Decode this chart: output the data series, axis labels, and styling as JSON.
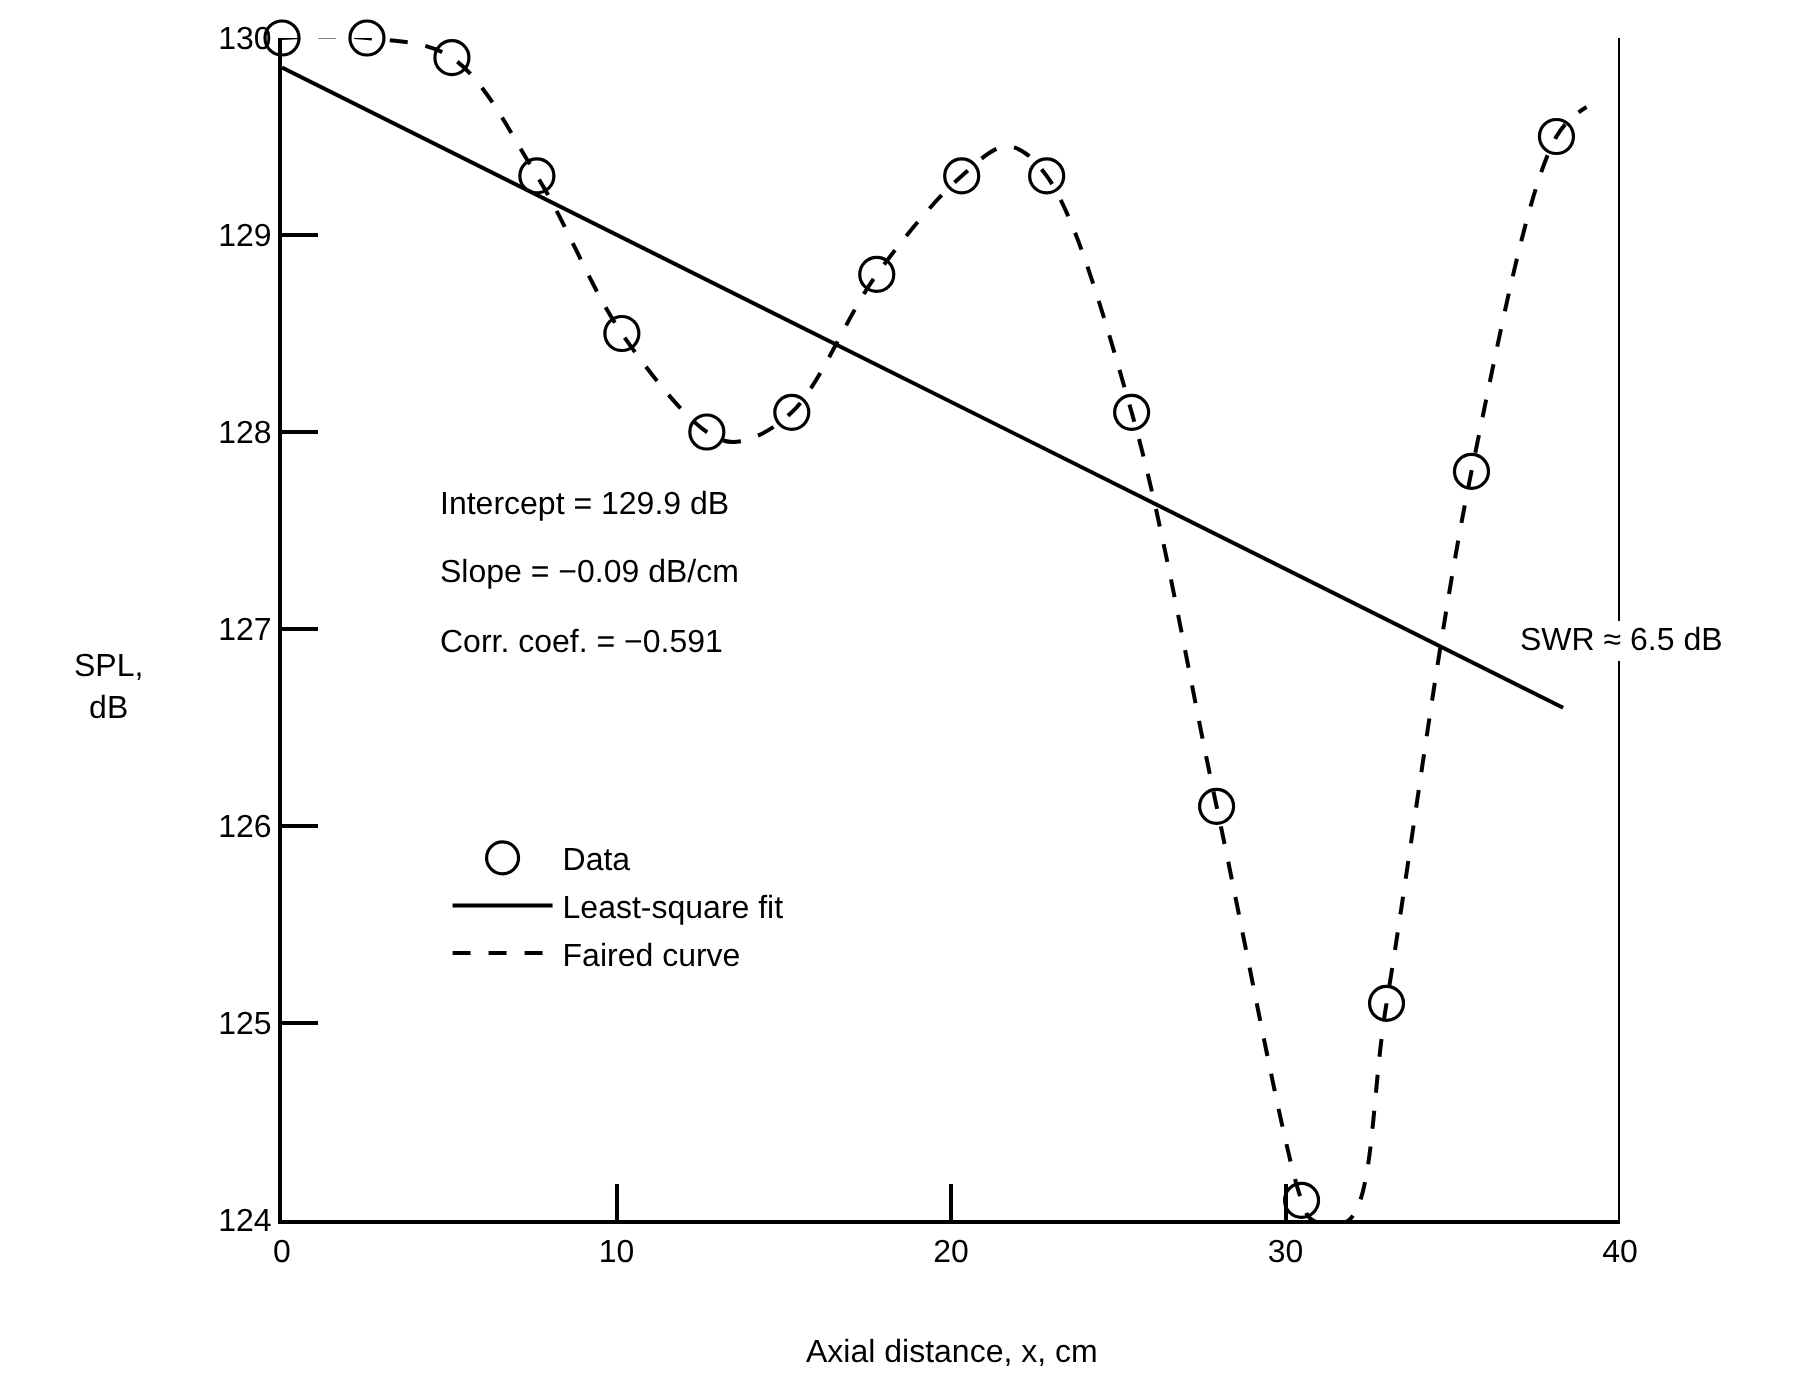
{
  "chart_data": {
    "type": "scatter",
    "xlabel": "Axial distance, x, cm",
    "ylabel": "SPL,\ndB",
    "xlim": [
      0,
      40
    ],
    "xticks": [
      0,
      10,
      20,
      30,
      40
    ],
    "ylim": [
      124,
      130
    ],
    "yticks": [
      124,
      125,
      126,
      127,
      128,
      129,
      130
    ],
    "legend": "left",
    "annotations": [
      "Intercept = 129.9 dB",
      "Slope = −0.09 dB/cm",
      "Corr. coef. = −0.591"
    ],
    "ref_lines": [
      {
        "axis": "x",
        "value": 40,
        "label": "SWR ≈ 6.5 dB",
        "color": "#000000"
      }
    ],
    "series": [
      {
        "name": "Data",
        "marker": "circle",
        "color": "#000000",
        "x": [
          0,
          2.54,
          5.08,
          7.62,
          10.16,
          12.7,
          15.24,
          17.78,
          20.32,
          22.86,
          25.4,
          27.94,
          30.48,
          33.02,
          35.56,
          38.1
        ],
        "values": [
          130.0,
          130.0,
          129.9,
          129.3,
          128.5,
          128.0,
          128.1,
          128.8,
          129.3,
          129.3,
          128.1,
          126.1,
          124.1,
          125.1,
          127.8,
          129.5
        ]
      },
      {
        "name": "Least-square fit",
        "type": "line",
        "marker": "none",
        "line_style": "solid",
        "color": "#000000",
        "x": [
          0,
          38.3
        ],
        "values": [
          129.85,
          126.6
        ]
      },
      {
        "name": "Faired curve",
        "type": "line",
        "marker": "none",
        "line_style": "dashed",
        "color": "#000000",
        "x": [
          0,
          2.54,
          5.08,
          7.62,
          10.16,
          12.7,
          13.6,
          15.24,
          17.78,
          20.32,
          21.7,
          22.86,
          25.4,
          27.94,
          30.48,
          30.8,
          31.9,
          33.02,
          35.56,
          38.1,
          39.0
        ],
        "values": [
          130.0,
          130.0,
          129.9,
          129.3,
          128.5,
          128.0,
          127.95,
          128.1,
          128.8,
          129.3,
          129.45,
          129.3,
          128.1,
          126.1,
          124.1,
          124.0,
          124.0,
          125.1,
          127.8,
          129.5,
          129.65
        ]
      }
    ]
  }
}
